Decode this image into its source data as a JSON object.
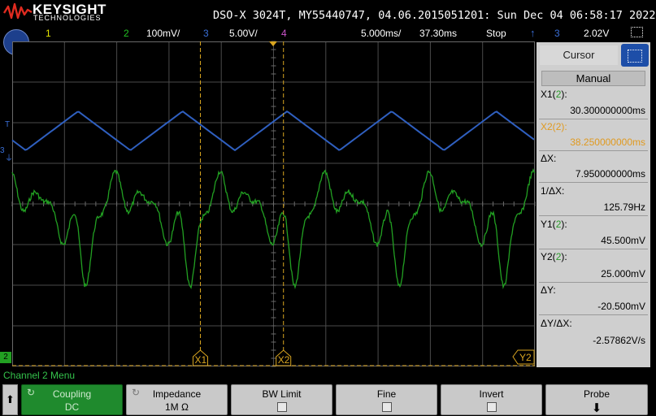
{
  "brand": {
    "name": "KEYSIGHT",
    "sub": "TECHNOLOGIES"
  },
  "title": "DSO-X 3024T, MY55440747, 04.06.2015051201: Sun Dec 04 06:58:17 2022",
  "status_bar": {
    "ch1": "1",
    "ch2": "2",
    "ch2_scale": "100mV/",
    "ch3": "3",
    "ch3_scale": "5.00V/",
    "ch4": "4",
    "timebase": "5.000ms/",
    "delay": "37.30ms",
    "run_state": "Stop",
    "trig_channel": "3",
    "trig_level": "2.02V"
  },
  "colors": {
    "ch1": "#e6e600",
    "ch2": "#22a022",
    "ch3": "#3a6fd8",
    "ch4": "#cc55cc",
    "cursor": "#d9a520",
    "grid": "#555555"
  },
  "markers": {
    "ch3_ground": "3",
    "ch2_ground": "2",
    "trigger": "T",
    "x1": "X1",
    "x2": "X2",
    "y2": "Y2"
  },
  "cursor_panel": {
    "tab": "Cursor",
    "mode": "Manual",
    "x1_label": "X1(",
    "x1_ch": "2",
    "x1_value": "30.300000000ms",
    "x2_label": "X2(",
    "x2_ch": "2",
    "x2_value": "38.250000000ms",
    "dx_label": "ΔX:",
    "dx_value": "7.950000000ms",
    "inv_dx_label": "1/ΔX:",
    "inv_dx_value": "125.79Hz",
    "y1_label": "Y1(",
    "y1_ch": "2",
    "y1_value": "45.500mV",
    "y2_label": "Y2(",
    "y2_ch": "2",
    "y2_value": "25.000mV",
    "dy_label": "ΔY:",
    "dy_value": "-20.500mV",
    "dydx_label": "ΔY/ΔX:",
    "dydx_value": "-2.57862V/s",
    "close_paren": "):"
  },
  "menu_title": "Channel 2 Menu",
  "softkeys": {
    "coupling": {
      "label": "Coupling",
      "value": "DC"
    },
    "impedance": {
      "label": "Impedance",
      "value": "1M Ω"
    },
    "bw_limit": {
      "label": "BW Limit"
    },
    "fine": {
      "label": "Fine"
    },
    "invert": {
      "label": "Invert"
    },
    "probe": {
      "label": "Probe"
    }
  },
  "chart_data": {
    "type": "line",
    "grid": {
      "divisions_x": 10,
      "divisions_y": 8
    },
    "x_range_ms": [
      12.3,
      62.3
    ],
    "cursors": {
      "x1_ms": 30.3,
      "x2_ms": 38.25
    },
    "series": [
      {
        "channel": "3",
        "waveform": "triangle",
        "period_ms": 10.0,
        "volts_per_div": 5.0
      },
      {
        "channel": "2",
        "waveform": "periodic",
        "period_ms": 10.0,
        "volts_per_div": 0.1
      }
    ]
  }
}
